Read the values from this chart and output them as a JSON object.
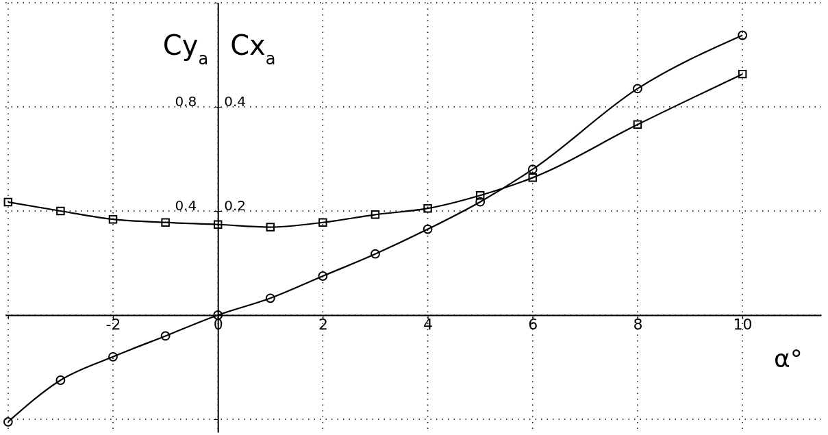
{
  "chart_data": {
    "type": "line",
    "xlabel": "α°",
    "ylabel": "Cy$_{a}$",
    "y2label": "Cx$_{a}$",
    "x": [
      -4,
      -3,
      -2,
      -1,
      0,
      1,
      2,
      3,
      4,
      5,
      6,
      8,
      10
    ],
    "series": [
      {
        "color": "#000000",
        "marker": "circle",
        "values": [
          -0.41,
          -0.25,
          -0.16,
          -0.08,
          0,
          0.065,
          0.15,
          0.235,
          0.33,
          0.435,
          0.56,
          0.87,
          1.075
        ]
      },
      {
        "color": "#000000",
        "marker": "square",
        "axis": "y2",
        "values": [
          0.217,
          0.2,
          0.184,
          0.178,
          0.174,
          0.169,
          0.178,
          0.193,
          0.205,
          0.23,
          0.264,
          0.366,
          0.463
        ]
      }
    ],
    "xlim": [
      -4.05,
      11.5
    ],
    "ylim": [
      -0.45,
      1.2
    ],
    "y2lim": [
      -0.225,
      0.6
    ],
    "xticks": [
      {
        "value": -4,
        "label": null
      },
      -2,
      0,
      2,
      4,
      6,
      8,
      10
    ],
    "yticks": [
      {
        "value": -0.4,
        "label": null
      },
      {
        "value": 0,
        "label": null
      },
      0.4,
      0.8,
      {
        "value": 1.2,
        "label": null
      }
    ],
    "y2ticks": [
      0.2,
      0.4
    ],
    "grid": true,
    "line_style": "solid"
  }
}
